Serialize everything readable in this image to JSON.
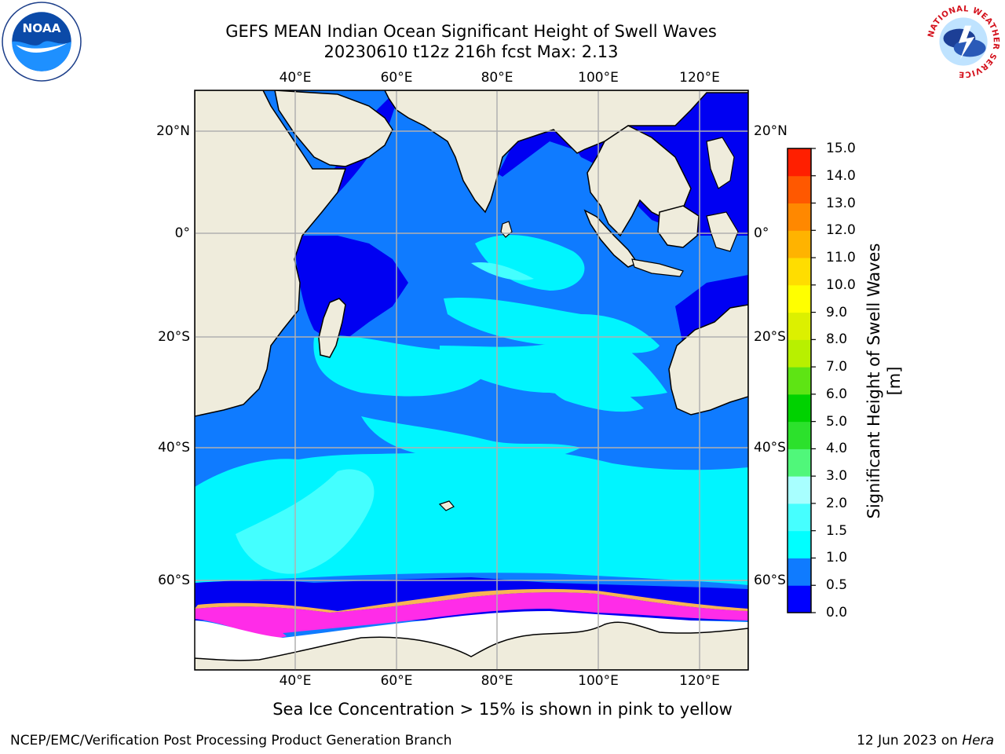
{
  "title": {
    "line1": "GEFS MEAN Indian Ocean Significant Height of Swell Waves",
    "line2": "20230610 t12z 216h fcst   Max: 2.13"
  },
  "logos": {
    "noaa": {
      "icon": "noaa-logo",
      "text": "NOAA"
    },
    "nws": {
      "icon": "nws-logo",
      "text": "NATIONAL WEATHER SERVICE"
    }
  },
  "axes": {
    "lon_ticks": [
      "40°E",
      "60°E",
      "80°E",
      "100°E",
      "120°E"
    ],
    "lat_ticks": [
      "20°N",
      "0°",
      "20°S",
      "40°S",
      "60°S"
    ]
  },
  "colorbar": {
    "title": "Significant Height of Swell Waves [m]",
    "levels": [
      "0.0",
      "0.5",
      "1.0",
      "1.5",
      "2.0",
      "3.0",
      "4.0",
      "5.0",
      "6.0",
      "7.0",
      "8.0",
      "9.0",
      "10.0",
      "11.0",
      "12.0",
      "13.0",
      "14.0",
      "15.0"
    ],
    "colors": [
      "#0000ff",
      "#0f7bff",
      "#00ffff",
      "#46ffff",
      "#a8ffff",
      "#50f77a",
      "#2ce12c",
      "#00d200",
      "#5ee414",
      "#b8f000",
      "#dcf000",
      "#ffff00",
      "#ffdd00",
      "#ffb300",
      "#ff8800",
      "#ff5800",
      "#ff1f00"
    ]
  },
  "colors": {
    "land": "#efecdc",
    "ocean_low": "#0000f2",
    "ocean_mid": "#0f7bff",
    "ocean_high": "#00f5ff",
    "ocean_peak": "#44ffff",
    "ice_pink": "#ff2ce8",
    "ice_orange": "#f8b454",
    "grid": "#b0b0b0"
  },
  "notes": {
    "ice": "Sea Ice Concentration > 15% is shown in pink to yellow"
  },
  "footer": {
    "left": "NCEP/EMC/Verification Post Processing Product Generation Branch",
    "right_prefix": "12 Jun 2023 on",
    "right_host": "Hera"
  }
}
